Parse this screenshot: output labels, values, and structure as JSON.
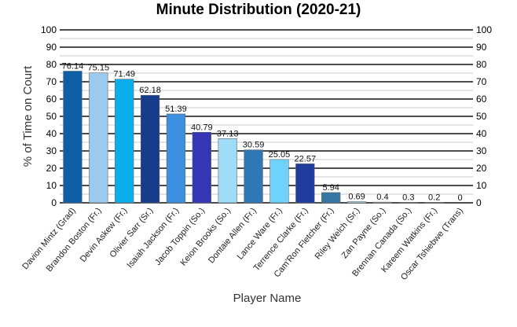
{
  "chart_data": {
    "type": "bar",
    "title": "Minute Distribution (2020-21)",
    "xlabel": "Player Name",
    "ylabel": "% of Time on Court",
    "ylim": [
      0,
      100
    ],
    "yticks": [
      0,
      10,
      20,
      30,
      40,
      50,
      60,
      70,
      80,
      90,
      100
    ],
    "grid": true,
    "legend": "none",
    "categories": [
      "Davion Mintz (Grad)",
      "Brandon Boston (Fr.)",
      "Devin Askew (Fr.)",
      "Olivier Sarr (Sr.)",
      "Isaiah Jackson (Fr.)",
      "Jacob Toppin (So.)",
      "Keion Brooks (So.)",
      "Dontaie Allen (Fr.)",
      "Lance Ware (Fr.)",
      "Terrence Clarke (Fr.)",
      "Cam'Ron Fletcher (Fr.)",
      "Riley Welch (Sr.)",
      "Zan Payne (So.)",
      "Brennan Canada (So.)",
      "Kareem Watkins (Fr.)",
      "Oscar Tshiebwe (Trans)"
    ],
    "values": [
      76.14,
      75.15,
      71.49,
      62.18,
      51.39,
      40.79,
      37.13,
      30.59,
      25.05,
      22.57,
      5.94,
      0.69,
      0.4,
      0.3,
      0.2,
      0
    ],
    "data_labels": [
      "76.14",
      "75.15",
      "71.49",
      "62.18",
      "51.39",
      "40.79",
      "37.13",
      "30.59",
      "25.05",
      "22.57",
      "5.94",
      "0.69",
      "0.4",
      "0.3",
      "0.2",
      "0"
    ],
    "colors": [
      "#0e5fa8",
      "#9cc9ee",
      "#0aaeea",
      "#163c8c",
      "#3d8fe0",
      "#3436b5",
      "#9edcf7",
      "#2f77b5",
      "#6fd2fb",
      "#1f3c9e",
      "#3776a2",
      "#b8e6fb",
      "#c0e0ff",
      "#8d9acd",
      "#cbd7f0",
      "#d9f2fd"
    ]
  }
}
